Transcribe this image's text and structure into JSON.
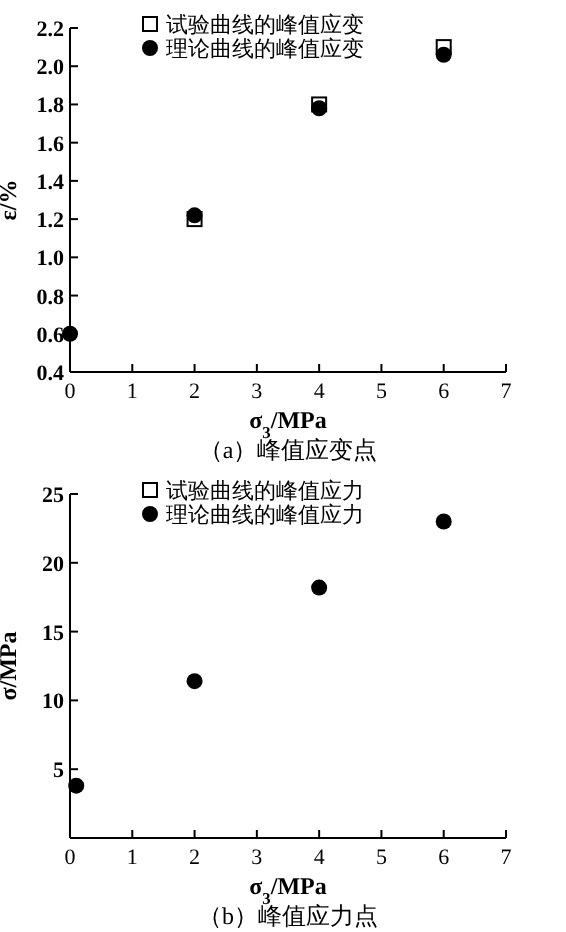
{
  "chart_data": [
    {
      "type": "scatter",
      "title": "（a）峰值应变点",
      "xlabel": "σ$_{3}$/MPa",
      "ylabel": "ε/%",
      "xlim": [
        0,
        7
      ],
      "xticks": [
        0,
        1,
        2,
        3,
        4,
        5,
        6,
        7
      ],
      "ylim": [
        0.4,
        2.2
      ],
      "yticks": [
        0.4,
        0.6,
        0.8,
        {
          "value": 1,
          "label": "1.0"
        },
        1.2,
        1.4,
        1.6,
        1.8,
        {
          "value": 2,
          "label": "2.0"
        },
        2.2
      ],
      "legend": "top left",
      "x": [
        0,
        2,
        4,
        6
      ],
      "series": [
        {
          "name": "试验曲线的峰值应变",
          "color": "#000000",
          "marker": "square",
          "values": [
            null,
            1.2,
            1.8,
            2.1
          ]
        },
        {
          "name": "理论曲线的峰值应变",
          "color": "#000000",
          "marker": "circle",
          "values": [
            0.6,
            1.22,
            1.78,
            2.06
          ]
        }
      ]
    },
    {
      "type": "scatter",
      "title": "（b）峰值应力点",
      "xlabel": "σ$_{3}$/MPa",
      "ylabel": "σ/MPa",
      "xlim": [
        0,
        7
      ],
      "xticks": [
        0,
        1,
        2,
        3,
        4,
        5,
        6,
        7
      ],
      "ylim": [
        0,
        25
      ],
      "yticks": [
        5,
        10,
        15,
        20,
        25
      ],
      "legend": "top left",
      "x": [
        0.1,
        2,
        4,
        6
      ],
      "series": [
        {
          "name": "试验曲线的峰值应力",
          "color": "#000000",
          "marker": "square",
          "values": [
            null,
            null,
            null,
            null
          ]
        },
        {
          "name": "理论曲线的峰值应力",
          "color": "#000000",
          "marker": "circle",
          "values": [
            3.8,
            11.4,
            18.2,
            23
          ]
        }
      ]
    }
  ]
}
